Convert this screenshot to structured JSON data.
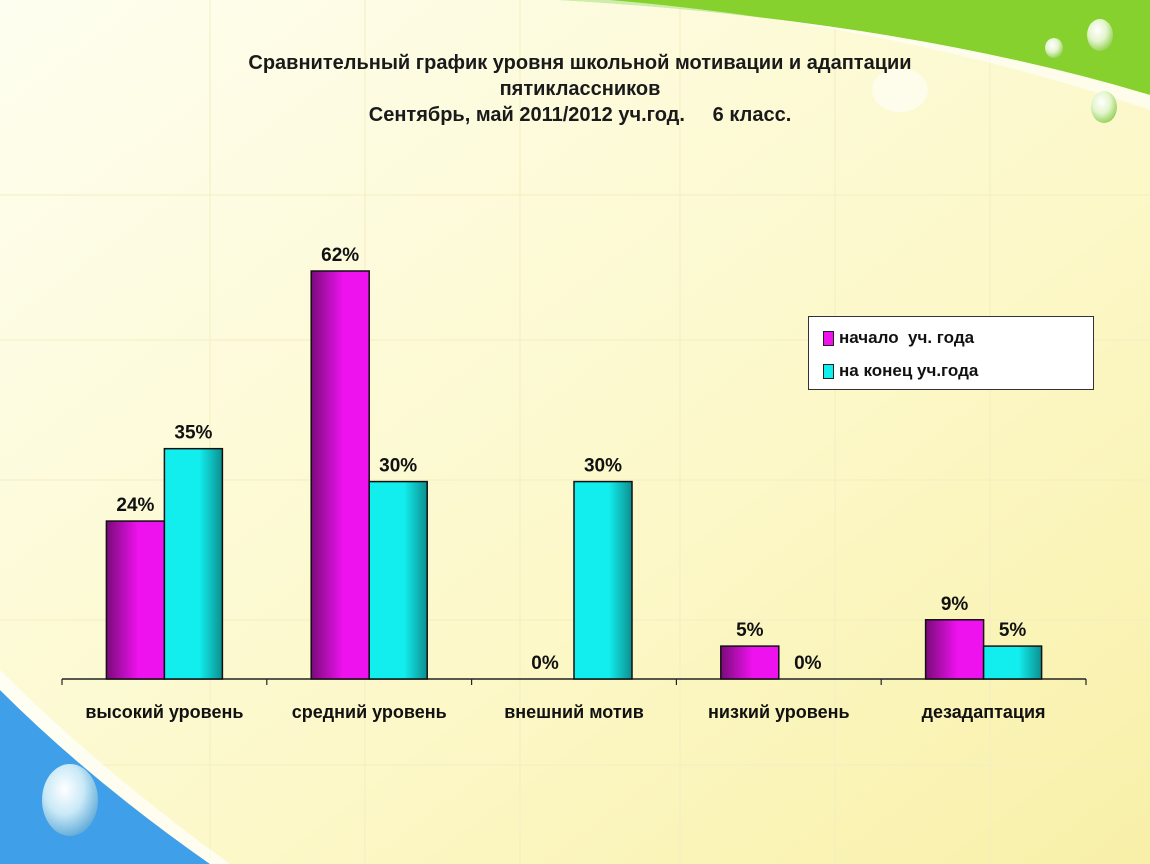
{
  "title_lines": [
    "Сравнительный график уровня школьной мотивации и адаптации",
    "пятиклассников",
    "Сентябрь, май 2011/2012 уч.год.     6 класс."
  ],
  "colors": {
    "series1": "#ee12ee",
    "series2": "#12eeee",
    "accent_green": "#7ed321",
    "accent_blue": "#3d9be9"
  },
  "chart_data": {
    "type": "bar",
    "categories": [
      "высокий уровень",
      "средний уровень",
      "внешний мотив",
      "низкий уровень",
      "дезадаптация"
    ],
    "series": [
      {
        "name": "начало  уч. года",
        "values": [
          24,
          62,
          0,
          5,
          9
        ],
        "labels": [
          "24%",
          "62%",
          "0%",
          "5%",
          "9%"
        ]
      },
      {
        "name": "на конец уч.года",
        "values": [
          35,
          30,
          30,
          0,
          5
        ],
        "labels": [
          "35%",
          "30%",
          "30%",
          "0%",
          "5%"
        ]
      }
    ],
    "ylim": [
      0,
      62
    ],
    "legend_position": "right",
    "grid": false
  }
}
